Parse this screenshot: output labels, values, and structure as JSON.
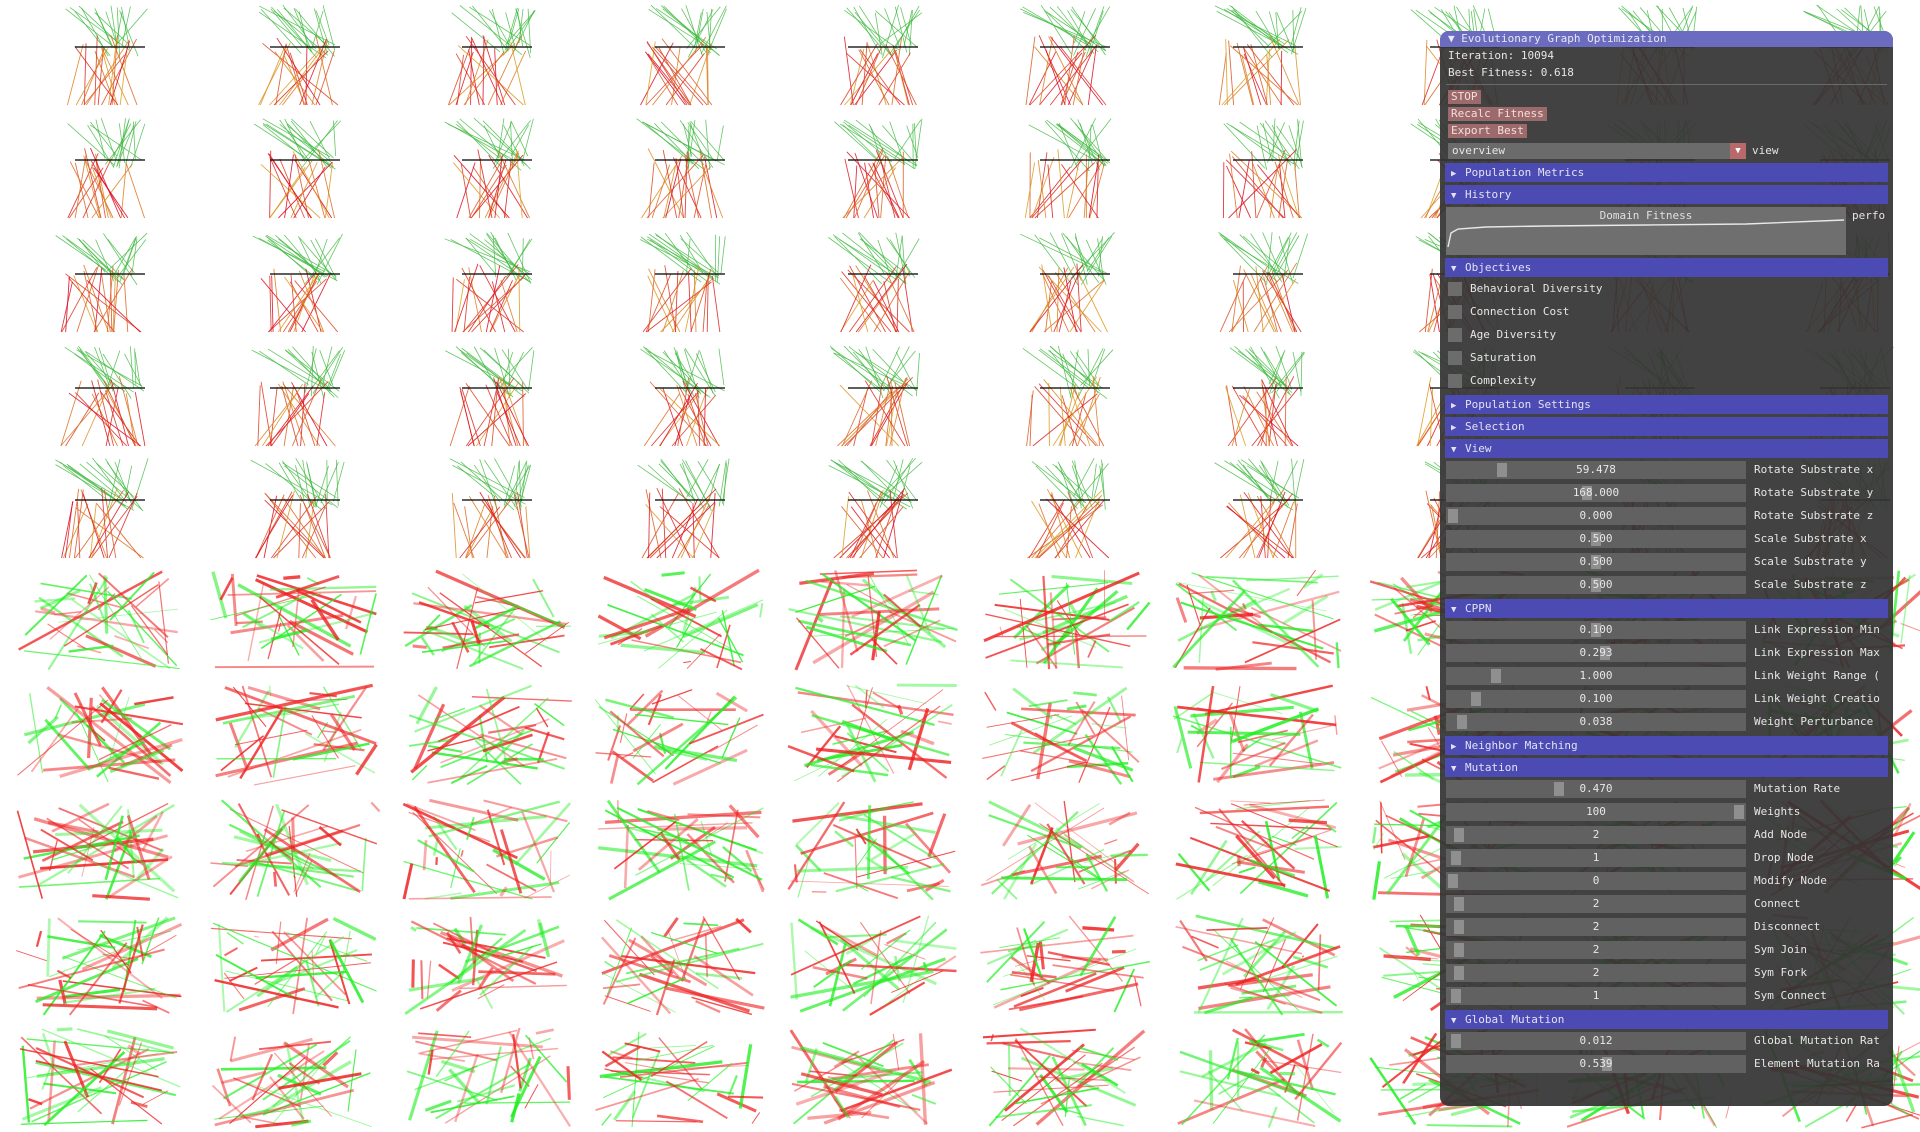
{
  "window": {
    "title": "Evolutionary Graph Optimization"
  },
  "status": {
    "iteration": "Iteration: 10094",
    "best_fitness": "Best Fitness: 0.618"
  },
  "buttons": {
    "stop": "STOP",
    "recalc": "Recalc Fitness",
    "export": "Export Best"
  },
  "view_combo": {
    "value": "overview",
    "label": "view"
  },
  "sections": {
    "population_metrics": "Population Metrics",
    "history": "History",
    "objectives": "Objectives",
    "population_settings": "Population Settings",
    "selection": "Selection",
    "view": "View",
    "cppn": "CPPN",
    "neighbor_matching": "Neighbor Matching",
    "mutation": "Mutation",
    "global_mutation": "Global Mutation"
  },
  "history_plot": {
    "title": "Domain Fitness",
    "label": "perfo"
  },
  "objectives": [
    {
      "label": "Behavioral Diversity",
      "checked": false
    },
    {
      "label": "Connection Cost",
      "checked": false
    },
    {
      "label": "Age Diversity",
      "checked": false
    },
    {
      "label": "Saturation",
      "checked": false
    },
    {
      "label": "Complexity",
      "checked": false
    }
  ],
  "view_sliders": [
    {
      "value": "59.478",
      "label": "Rotate Substrate x",
      "fraction": 0.17
    },
    {
      "value": "168.000",
      "label": "Rotate Substrate y",
      "fraction": 0.47
    },
    {
      "value": "0.000",
      "label": "Rotate Substrate z",
      "fraction": 0.0
    },
    {
      "value": "0.500",
      "label": "Scale Substrate x",
      "fraction": 0.5
    },
    {
      "value": "0.500",
      "label": "Scale Substrate y",
      "fraction": 0.5
    },
    {
      "value": "0.500",
      "label": "Scale Substrate z",
      "fraction": 0.5
    }
  ],
  "cppn_sliders": [
    {
      "value": "0.100",
      "label": "Link Expression Min",
      "fraction": 0.5
    },
    {
      "value": "0.293",
      "label": "Link Expression Max",
      "fraction": 0.53
    },
    {
      "value": "1.000",
      "label": "Link Weight Range (",
      "fraction": 0.15
    },
    {
      "value": "0.100",
      "label": "Link Weight Creatio",
      "fraction": 0.08
    },
    {
      "value": "0.038",
      "label": "Weight Perturbance",
      "fraction": 0.03
    }
  ],
  "mutation_sliders": [
    {
      "value": "0.470",
      "label": "Mutation Rate",
      "fraction": 0.37
    },
    {
      "value": "100",
      "label": "Weights",
      "fraction": 1.0
    },
    {
      "value": "2",
      "label": "Add Node",
      "fraction": 0.02
    },
    {
      "value": "1",
      "label": "Drop Node",
      "fraction": 0.01
    },
    {
      "value": "0",
      "label": "Modify Node",
      "fraction": 0.0
    },
    {
      "value": "2",
      "label": "Connect",
      "fraction": 0.02
    },
    {
      "value": "2",
      "label": "Disconnect",
      "fraction": 0.02
    },
    {
      "value": "2",
      "label": "Sym Join",
      "fraction": 0.02
    },
    {
      "value": "2",
      "label": "Sym Fork",
      "fraction": 0.02
    },
    {
      "value": "1",
      "label": "Sym Connect",
      "fraction": 0.01
    }
  ],
  "global_mutation_sliders": [
    {
      "value": "0.012",
      "label": "Global Mutation Rat",
      "fraction": 0.01
    },
    {
      "value": "0.539",
      "label": "Element Mutation Ra",
      "fraction": 0.54
    }
  ],
  "colors": {
    "panel_bg": "#343434",
    "header": "#4b4bb3",
    "title_bar": "#6b6bc0",
    "button": "#9c6a6a"
  }
}
